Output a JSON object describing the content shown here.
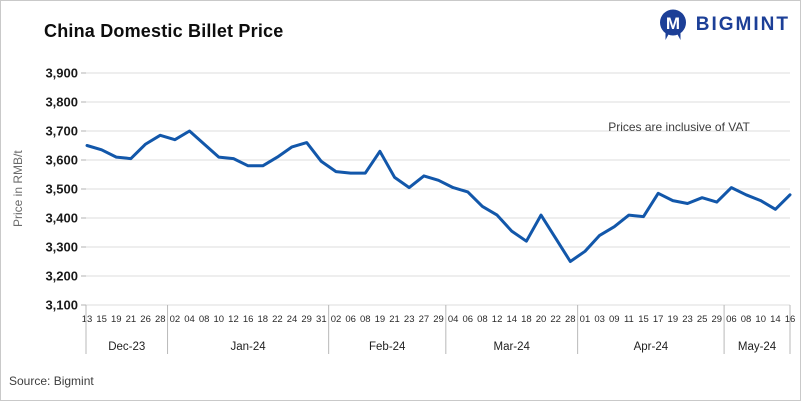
{
  "header": {
    "title": "China Domestic Billet Price",
    "brand": "BIGMINT"
  },
  "source": "Source: Bigmint",
  "chart_data": {
    "type": "line",
    "title": "China Domestic Billet Price",
    "series_name": "China domestic billet price",
    "xlabel": "",
    "ylabel": "Price in RMB/t",
    "ylim": [
      3100,
      3900
    ],
    "ytick_step": 100,
    "ytick_labels": [
      "3,900",
      "3,800",
      "3,700",
      "3,600",
      "3,500",
      "3,400",
      "3,300",
      "3,200",
      "3,100"
    ],
    "grid": true,
    "legend_position": "none",
    "annotation": "Prices are inclusive of VAT",
    "line_color": "#1257aa",
    "months": [
      {
        "label": "Dec-23",
        "days": [
          "13",
          "15",
          "19",
          "21",
          "26",
          "28"
        ],
        "values": [
          3650,
          3635,
          3610,
          3605,
          3655,
          3685
        ]
      },
      {
        "label": "Jan-24",
        "days": [
          "02",
          "04",
          "08",
          "10",
          "12",
          "16",
          "18",
          "22",
          "24",
          "29",
          "31"
        ],
        "values": [
          3670,
          3700,
          3655,
          3610,
          3605,
          3580,
          3580,
          3610,
          3645,
          3660,
          3595
        ]
      },
      {
        "label": "Feb-24",
        "days": [
          "02",
          "06",
          "08",
          "19",
          "21",
          "23",
          "27",
          "29"
        ],
        "values": [
          3560,
          3555,
          3555,
          3630,
          3540,
          3505,
          3545,
          3530
        ]
      },
      {
        "label": "Mar-24",
        "days": [
          "04",
          "06",
          "08",
          "12",
          "14",
          "18",
          "20",
          "22",
          "28"
        ],
        "values": [
          3505,
          3490,
          3440,
          3410,
          3355,
          3320,
          3410,
          3330,
          3250
        ]
      },
      {
        "label": "Apr-24",
        "days": [
          "01",
          "03",
          "09",
          "11",
          "15",
          "17",
          "19",
          "23",
          "25",
          "29"
        ],
        "values": [
          3285,
          3340,
          3370,
          3410,
          3405,
          3485,
          3460,
          3450,
          3470,
          3455
        ]
      },
      {
        "label": "May-24",
        "days": [
          "06",
          "08",
          "10",
          "14",
          "16"
        ],
        "values": [
          3505,
          3480,
          3460,
          3430,
          3480
        ]
      }
    ]
  }
}
